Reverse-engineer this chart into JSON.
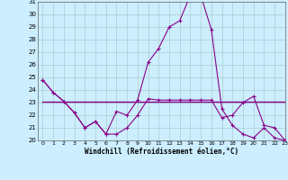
{
  "x": [
    0,
    1,
    2,
    3,
    4,
    5,
    6,
    7,
    8,
    9,
    10,
    11,
    12,
    13,
    14,
    15,
    16,
    17,
    18,
    19,
    20,
    21,
    22,
    23
  ],
  "line_peak": [
    24.8,
    23.8,
    23.1,
    22.2,
    21.0,
    21.5,
    20.5,
    22.3,
    22.0,
    23.2,
    26.2,
    27.3,
    29.0,
    29.5,
    31.5,
    31.5,
    28.8,
    22.5,
    21.2,
    20.5,
    20.2,
    21.0,
    20.2,
    20.0
  ],
  "line_lower": [
    24.8,
    23.8,
    23.1,
    22.2,
    21.0,
    21.5,
    20.5,
    20.5,
    21.0,
    22.0,
    23.3,
    23.2,
    23.2,
    23.2,
    23.2,
    23.2,
    23.2,
    21.8,
    22.0,
    23.0,
    23.5,
    21.2,
    21.0,
    20.0
  ],
  "line_flat": [
    23.1,
    23.1,
    23.1,
    23.1,
    23.1,
    23.1,
    23.1,
    23.1,
    23.1,
    23.1,
    23.1,
    23.1,
    23.1,
    23.1,
    23.1,
    23.1,
    23.1,
    23.1,
    23.1,
    23.1,
    23.1,
    23.1,
    23.1,
    23.1
  ],
  "color": "#880088",
  "bg_color": "#cceeff",
  "grid_color": "#aacccc",
  "xlabel": "Windchill (Refroidissement éolien,°C)",
  "ylim": [
    20,
    31
  ],
  "xlim": [
    -0.5,
    23
  ],
  "yticks": [
    20,
    21,
    22,
    23,
    24,
    25,
    26,
    27,
    28,
    29,
    30,
    31
  ],
  "xticks": [
    0,
    1,
    2,
    3,
    4,
    5,
    6,
    7,
    8,
    9,
    10,
    11,
    12,
    13,
    14,
    15,
    16,
    17,
    18,
    19,
    20,
    21,
    22,
    23
  ],
  "xlabel_fontsize": 5.5,
  "tick_fontsize": 5.0
}
